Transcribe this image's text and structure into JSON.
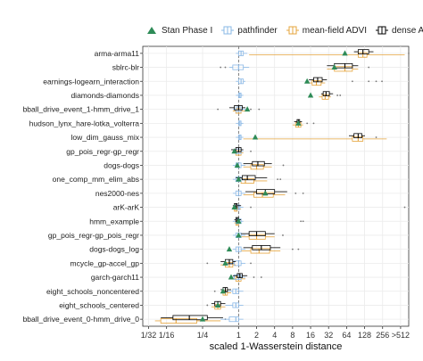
{
  "chart_data": {
    "type": "boxplot",
    "title": "",
    "xlabel": "scaled 1-Wasserstein distance",
    "ylabel": "",
    "x_scale": "log2",
    "xlim": [
      0.025,
      700
    ],
    "xticks": [
      {
        "value": 0.03125,
        "label": "1/32"
      },
      {
        "value": 0.0625,
        "label": "1/16"
      },
      {
        "value": 0.25,
        "label": "1/4"
      },
      {
        "value": 1,
        "label": "1"
      },
      {
        "value": 2,
        "label": "2"
      },
      {
        "value": 4,
        "label": "4"
      },
      {
        "value": 8,
        "label": "8"
      },
      {
        "value": 16,
        "label": "16"
      },
      {
        "value": 32,
        "label": "32"
      },
      {
        "value": 64,
        "label": "64"
      },
      {
        "value": 128,
        "label": "128"
      },
      {
        "value": 256,
        "label": "256"
      },
      {
        "value": 512,
        "label": ">512"
      }
    ],
    "reference_line": 1,
    "grid": true,
    "legend_position": "top",
    "series": [
      {
        "name": "Stan Phase I",
        "marker": "triangle",
        "color": "#2e8b57"
      },
      {
        "name": "pathfinder",
        "marker": "box",
        "color": "#8ab8e6"
      },
      {
        "name": "mean-field ADVI",
        "marker": "box",
        "color": "#e6a43c"
      },
      {
        "name": "dense ADVI",
        "marker": "box",
        "color": "#000000"
      }
    ],
    "categories": [
      "arma-arma11",
      "sblrc-blr",
      "earnings-logearn_interaction",
      "diamonds-diamonds",
      "bball_drive_event_1-hmm_drive_1",
      "hudson_lynx_hare-lotka_volterra",
      "low_dim_gauss_mix",
      "gp_pois_regr-gp_regr",
      "dogs-dogs",
      "one_comp_mm_elim_abs",
      "nes2000-nes",
      "arK-arK",
      "hmm_example",
      "gp_pois_regr-gp_pois_regr",
      "dogs-dogs_log",
      "mcycle_gp-accel_gp",
      "garch-garch11",
      "eight_schools_noncentered",
      "eight_schools_centered",
      "bball_drive_event_0-hmm_drive_0"
    ],
    "rows": [
      {
        "stan": 60,
        "path": [
          0.9,
          1.0,
          1.1,
          1.2,
          1.4
        ],
        "mf": [
          1.5,
          100,
          120,
          140,
          600
        ],
        "dense": [
          85,
          100,
          120,
          150,
          180
        ],
        "outliers": [
          700
        ]
      },
      {
        "stan": 40,
        "path": [
          0.7,
          0.8,
          1.0,
          1.2,
          1.5
        ],
        "mf": [
          30,
          40,
          60,
          80,
          100
        ],
        "dense": [
          30,
          40,
          60,
          80,
          100
        ],
        "outliers": [
          0.5,
          0.6,
          150
        ]
      },
      {
        "stan": 14,
        "path": [
          0.9,
          1.0,
          1.1,
          1.2,
          1.3
        ],
        "mf": [
          14,
          17,
          20,
          24,
          28
        ],
        "dense": [
          15,
          18,
          21,
          25,
          30
        ],
        "outliers": [
          80,
          150,
          200,
          250
        ]
      },
      {
        "stan": 16,
        "path": [
          0.9,
          1.0,
          1.05,
          1.1,
          1.2
        ],
        "mf": [
          22,
          25,
          28,
          32,
          35
        ],
        "dense": [
          24,
          26,
          29,
          33,
          38
        ],
        "outliers": [
          45,
          50
        ]
      },
      {
        "stan": 1.4,
        "path": [
          0.8,
          0.9,
          1.0,
          1.1,
          1.3
        ],
        "mf": [
          0.8,
          0.9,
          1.0,
          1.1,
          1.3
        ],
        "dense": [
          0.7,
          0.85,
          1.0,
          1.15,
          1.3
        ],
        "outliers": [
          0.45,
          1.6,
          2.2
        ]
      },
      {
        "stan": 10,
        "path": [
          0.9,
          1.0,
          1.05,
          1.1,
          1.2
        ],
        "mf": [
          8,
          9,
          10,
          11,
          12
        ],
        "dense": [
          8.5,
          9.5,
          10,
          10.5,
          11.5
        ],
        "outliers": [
          14,
          18
        ]
      },
      {
        "stan": 1.9,
        "path": [
          0.9,
          1.0,
          1.05,
          1.1,
          1.2
        ],
        "mf": [
          1.2,
          80,
          100,
          120,
          300
        ],
        "dense": [
          70,
          85,
          100,
          115,
          130
        ],
        "outliers": [
          200
        ]
      },
      {
        "stan": 0.85,
        "path": [
          0.8,
          0.9,
          1.0,
          1.1,
          1.2
        ],
        "mf": [
          0.8,
          0.9,
          1.0,
          1.1,
          1.2
        ],
        "dense": [
          0.75,
          0.9,
          1.0,
          1.1,
          1.2
        ],
        "outliers": [
          1.6
        ]
      },
      {
        "stan": 0.95,
        "path": [
          0.8,
          0.9,
          1.0,
          1.1,
          1.3
        ],
        "mf": [
          1.2,
          1.6,
          2.0,
          2.6,
          3.6
        ],
        "dense": [
          1.2,
          1.7,
          2.1,
          2.7,
          3.6
        ],
        "outliers": [
          5.6
        ]
      },
      {
        "stan": 1.0,
        "path": [
          0.8,
          0.9,
          1.0,
          1.1,
          1.3
        ],
        "mf": [
          0.9,
          1.1,
          1.3,
          1.8,
          3.0
        ],
        "dense": [
          0.9,
          1.15,
          1.4,
          1.9,
          3.0
        ],
        "outliers": [
          4.5,
          5.0
        ]
      },
      {
        "stan": 2.8,
        "path": [
          0.8,
          0.9,
          1.0,
          1.1,
          1.3
        ],
        "mf": [
          1.2,
          1.8,
          2.5,
          3.8,
          6.0
        ],
        "dense": [
          1.3,
          2.0,
          2.8,
          4.0,
          6.5
        ],
        "outliers": [
          9,
          12
        ]
      },
      {
        "stan": 0.85,
        "path": [
          0.8,
          0.9,
          1.0,
          1.05,
          1.2
        ],
        "mf": [
          0.8,
          0.85,
          0.9,
          0.95,
          1.1
        ],
        "dense": [
          0.8,
          0.85,
          0.9,
          0.95,
          1.1
        ],
        "outliers": [
          1.6,
          600
        ]
      },
      {
        "stan": 1.0,
        "path": [
          0.8,
          0.9,
          1.0,
          1.1,
          1.2
        ],
        "mf": [
          0.85,
          0.9,
          0.95,
          1.0,
          1.1
        ],
        "dense": [
          0.85,
          0.9,
          0.95,
          1.0,
          1.1
        ],
        "outliers": [
          11,
          12
        ]
      },
      {
        "stan": 1.0,
        "path": [
          0.8,
          0.9,
          1.0,
          1.1,
          1.3
        ],
        "mf": [
          1.1,
          1.5,
          2.0,
          2.8,
          4.0
        ],
        "dense": [
          1.1,
          1.5,
          2.0,
          2.8,
          4.0
        ],
        "outliers": [
          5.5
        ]
      },
      {
        "stan": 0.7,
        "path": [
          0.8,
          0.9,
          1.0,
          1.1,
          1.3
        ],
        "mf": [
          1.1,
          1.6,
          2.2,
          3.3,
          5.0
        ],
        "dense": [
          1.2,
          1.7,
          2.4,
          3.4,
          5.0
        ],
        "outliers": [
          8,
          10
        ]
      },
      {
        "stan": 0.6,
        "path": [
          0.7,
          0.85,
          1.0,
          1.1,
          1.3
        ],
        "mf": [
          0.5,
          0.6,
          0.7,
          0.8,
          0.9
        ],
        "dense": [
          0.5,
          0.6,
          0.7,
          0.8,
          0.9
        ],
        "outliers": [
          0.3,
          1.6
        ]
      },
      {
        "stan": 0.75,
        "path": [
          0.7,
          0.85,
          1.0,
          1.1,
          1.3
        ],
        "mf": [
          0.8,
          0.9,
          1.0,
          1.1,
          1.3
        ],
        "dense": [
          0.8,
          0.95,
          1.05,
          1.15,
          1.4
        ],
        "outliers": [
          1.8,
          2.4
        ]
      },
      {
        "stan": 0.55,
        "path": [
          0.6,
          0.8,
          0.9,
          1.0,
          1.2
        ],
        "mf": [
          0.5,
          0.55,
          0.6,
          0.65,
          0.75
        ],
        "dense": [
          0.5,
          0.55,
          0.6,
          0.65,
          0.75
        ],
        "outliers": [
          0.4,
          1.0
        ]
      },
      {
        "stan": 0.45,
        "path": [
          0.6,
          0.8,
          0.9,
          1.0,
          1.2
        ],
        "mf": [
          0.35,
          0.4,
          0.45,
          0.5,
          0.6
        ],
        "dense": [
          0.35,
          0.4,
          0.45,
          0.5,
          0.6
        ],
        "outliers": [
          0.3
        ]
      },
      {
        "stan": 0.25,
        "path": [
          0.5,
          0.7,
          0.9,
          1.0,
          1.2
        ],
        "mf": [
          0.04,
          0.05,
          0.09,
          0.2,
          0.5
        ],
        "dense": [
          0.05,
          0.08,
          0.15,
          0.3,
          0.55
        ],
        "outliers": [
          0.6
        ]
      }
    ]
  }
}
